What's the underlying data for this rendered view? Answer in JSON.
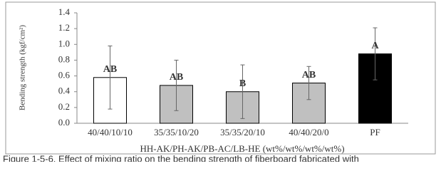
{
  "chart_data": {
    "type": "bar",
    "y_label": "Bending strength (kgf/cm²)",
    "x_label": "HH-AK/PH-AK/PB-AC/LB-HE (wt%/wt%/wt%/wt%)",
    "caption": "Figure 1-5-6. Effect of mixing ratio on the bending strength of fiberboard fabricated with",
    "categories": [
      "40/40/10/10",
      "35/35/10/20",
      "35/35/20/10",
      "40/40/20/0",
      "PF"
    ],
    "values": [
      0.58,
      0.48,
      0.4,
      0.51,
      0.88
    ],
    "errors": [
      0.4,
      0.32,
      0.34,
      0.21,
      0.33
    ],
    "annotations": [
      "AB",
      "AB",
      "B",
      "AB",
      "A"
    ],
    "colors": [
      "#ffffff",
      "#c0c0c0",
      "#c0c0c0",
      "#c0c0c0",
      "#000000"
    ],
    "ylim": [
      0,
      1.4
    ],
    "yticks": [
      {
        "value": 0,
        "label": "0.0"
      },
      {
        "value": 0.2,
        "label": "0.2"
      },
      {
        "value": 0.4,
        "label": "0.4"
      },
      {
        "value": 0.6,
        "label": "0.6"
      },
      {
        "value": 0.8,
        "label": "0.8"
      },
      {
        "value": 1.0,
        "label": "1.0"
      },
      {
        "value": 1.2,
        "label": "1.2"
      },
      {
        "value": 1.4,
        "label": "1.4"
      }
    ]
  }
}
